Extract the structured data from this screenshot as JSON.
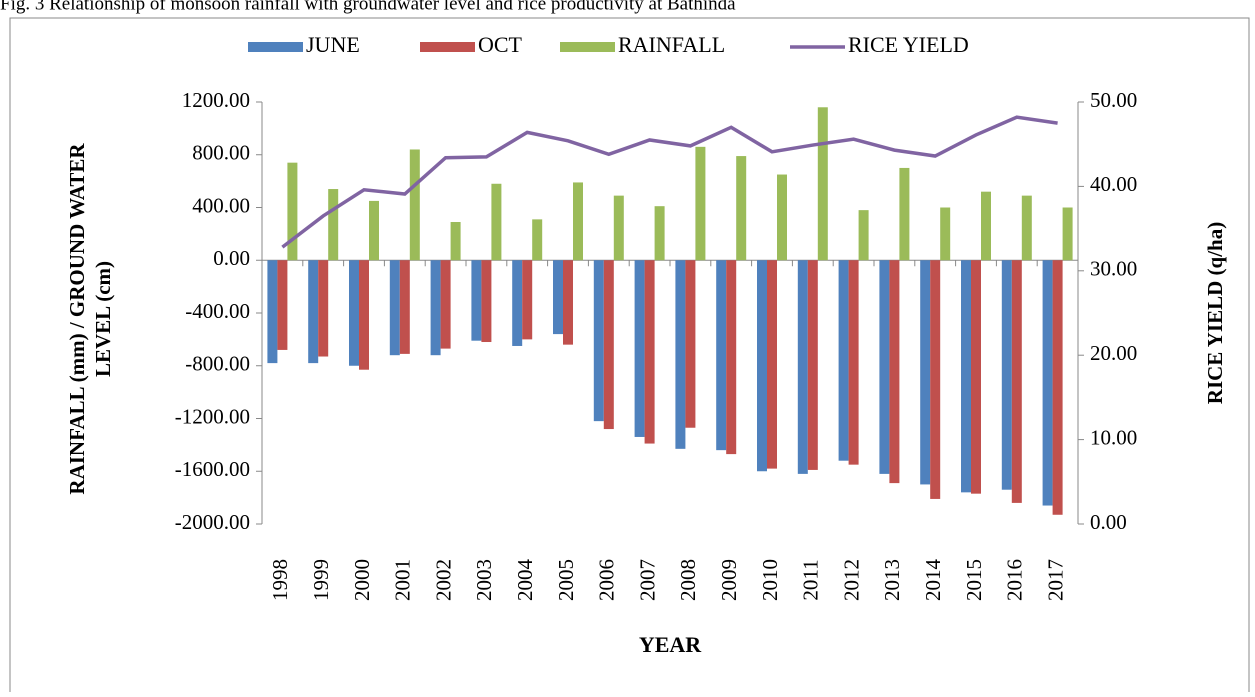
{
  "chart_data": {
    "type": "bar-line",
    "title": "Fig. 3 Relationship of monsoon rainfall with groundwater level and rice productivity at Bathinda",
    "x_label": "YEAR",
    "y_label": "RAINFALL (mm) / GROUND WATER LEVEL (cm)",
    "y2_label": "RICE YIELD (q/ha)",
    "categories": [
      "1998",
      "1999",
      "2000",
      "2001",
      "2002",
      "2003",
      "2004",
      "2005",
      "2006",
      "2007",
      "2008",
      "2009",
      "2010",
      "2011",
      "2012",
      "2013",
      "2014",
      "2015",
      "2016",
      "2017"
    ],
    "series": [
      {
        "name": "JUNE",
        "type": "bar",
        "color": "#4f81bd",
        "values": [
          -780,
          -780,
          -800,
          -720,
          -720,
          -610,
          -650,
          -560,
          -1220,
          -1340,
          -1430,
          -1440,
          -1600,
          -1620,
          -1520,
          -1620,
          -1700,
          -1760,
          -1740,
          -1860
        ]
      },
      {
        "name": "OCT",
        "type": "bar",
        "color": "#c0504d",
        "values": [
          -680,
          -730,
          -830,
          -710,
          -670,
          -620,
          -600,
          -640,
          -1280,
          -1390,
          -1270,
          -1470,
          -1580,
          -1590,
          -1550,
          -1690,
          -1810,
          -1770,
          -1840,
          -1930
        ]
      },
      {
        "name": "RAINFALL",
        "type": "bar",
        "color": "#9bbb59",
        "values": [
          740,
          540,
          450,
          840,
          290,
          580,
          310,
          590,
          490,
          410,
          860,
          790,
          650,
          1160,
          380,
          700,
          400,
          520,
          490,
          400
        ]
      },
      {
        "name": "RICE YIELD",
        "type": "line",
        "axis": "y2",
        "color": "#8064a2",
        "values": [
          32.8,
          36.5,
          39.6,
          39.1,
          43.4,
          43.5,
          46.4,
          45.4,
          43.8,
          45.5,
          44.8,
          47.0,
          44.1,
          44.9,
          45.6,
          44.3,
          43.6,
          46.1,
          48.2,
          47.5
        ]
      }
    ],
    "ylim": [
      -2000,
      1200
    ],
    "yticks": [
      {
        "value": -2000,
        "label": "-2000.00"
      },
      {
        "value": -1600,
        "label": "-1600.00"
      },
      {
        "value": -1200,
        "label": "-1200.00"
      },
      {
        "value": -800,
        "label": "-800.00"
      },
      {
        "value": -400,
        "label": "-400.00"
      },
      {
        "value": 0,
        "label": "0.00"
      },
      {
        "value": 400,
        "label": "400.00"
      },
      {
        "value": 800,
        "label": "800.00"
      },
      {
        "value": 1200,
        "label": "1200.00"
      }
    ],
    "y2lim": [
      0,
      50
    ],
    "y2ticks": [
      {
        "value": 0,
        "label": "0.00"
      },
      {
        "value": 10,
        "label": "10.00"
      },
      {
        "value": 20,
        "label": "20.00"
      },
      {
        "value": 30,
        "label": "30.00"
      },
      {
        "value": 40,
        "label": "40.00"
      },
      {
        "value": 50,
        "label": "50.00"
      }
    ],
    "grid": false,
    "legend": "top"
  }
}
